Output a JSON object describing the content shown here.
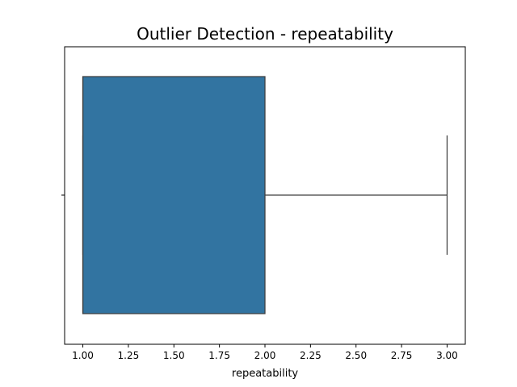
{
  "chart_data": {
    "type": "box",
    "title": "Outlier Detection - repeatability",
    "xlabel": "repeatability",
    "ylabel": "",
    "xlim": [
      0.9,
      3.1
    ],
    "x_ticks": [
      1.0,
      1.25,
      1.5,
      1.75,
      2.0,
      2.25,
      2.5,
      2.75,
      3.0
    ],
    "x_tick_labels": [
      "1.00",
      "1.25",
      "1.50",
      "1.75",
      "2.00",
      "2.25",
      "2.50",
      "2.75",
      "3.00"
    ],
    "orientation": "horizontal",
    "box": {
      "whisker_low": 1.0,
      "q1": 1.0,
      "median": 1.0,
      "q3": 2.0,
      "whisker_high": 3.0,
      "outliers": []
    },
    "grid": false,
    "legend": "none",
    "colors": {
      "box_fill": "#3274a1",
      "line": "#3f3f3f",
      "spine": "#000000"
    }
  }
}
